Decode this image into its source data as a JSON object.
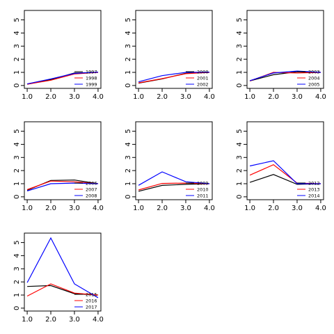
{
  "chart_data": [
    {
      "type": "line",
      "x": [
        1.0,
        2.0,
        3.0,
        4.0
      ],
      "xticks": [
        "1.0",
        "2.0",
        "3.0",
        "4.0"
      ],
      "yticks": [
        "0",
        "1",
        "2",
        "3",
        "4",
        "5"
      ],
      "ylim": [
        0,
        5.5
      ],
      "legend_position": "bottom-right",
      "series": [
        {
          "name": "1997",
          "color": "#000000",
          "values": [
            0.1,
            0.45,
            0.95,
            1.0
          ]
        },
        {
          "name": "1998",
          "color": "#ff0000",
          "values": [
            0.1,
            0.4,
            0.88,
            1.0
          ]
        },
        {
          "name": "1999",
          "color": "#0000ff",
          "values": [
            0.12,
            0.5,
            0.92,
            1.02
          ]
        }
      ]
    },
    {
      "type": "line",
      "x": [
        1.0,
        2.0,
        3.0,
        4.0
      ],
      "xticks": [
        "1.0",
        "2.0",
        "3.0",
        "4.0"
      ],
      "yticks": [
        "0",
        "1",
        "2",
        "3",
        "4",
        "5"
      ],
      "ylim": [
        0,
        5.5
      ],
      "legend_position": "bottom-right",
      "series": [
        {
          "name": "2000",
          "color": "#000000",
          "values": [
            0.18,
            0.5,
            0.93,
            1.0
          ]
        },
        {
          "name": "2001",
          "color": "#ff0000",
          "values": [
            0.2,
            0.52,
            0.9,
            1.0
          ]
        },
        {
          "name": "2002",
          "color": "#0000ff",
          "values": [
            0.28,
            0.75,
            1.0,
            1.02
          ]
        }
      ]
    },
    {
      "type": "line",
      "x": [
        1.0,
        2.0,
        3.0,
        4.0
      ],
      "xticks": [
        "1.0",
        "2.0",
        "3.0",
        "4.0"
      ],
      "yticks": [
        "0",
        "1",
        "2",
        "3",
        "4",
        "5"
      ],
      "ylim": [
        0,
        5.5
      ],
      "legend_position": "bottom-right",
      "series": [
        {
          "name": "2003",
          "color": "#000000",
          "values": [
            0.35,
            0.82,
            1.05,
            1.0
          ]
        },
        {
          "name": "2004",
          "color": "#ff0000",
          "values": [
            0.35,
            1.0,
            0.95,
            1.0
          ]
        },
        {
          "name": "2005",
          "color": "#0000ff",
          "values": [
            0.37,
            0.95,
            1.1,
            1.0
          ]
        }
      ]
    },
    {
      "type": "line",
      "x": [
        1.0,
        2.0,
        3.0,
        4.0
      ],
      "xticks": [
        "1.0",
        "2.0",
        "3.0",
        "4.0"
      ],
      "yticks": [
        "0",
        "1",
        "2",
        "3",
        "4",
        "5"
      ],
      "ylim": [
        0,
        5.5
      ],
      "legend_position": "bottom-right",
      "series": [
        {
          "name": "2006",
          "color": "#000000",
          "values": [
            0.5,
            1.25,
            1.28,
            1.0
          ]
        },
        {
          "name": "2007",
          "color": "#ff0000",
          "values": [
            0.55,
            1.2,
            1.15,
            1.0
          ]
        },
        {
          "name": "2008",
          "color": "#0000ff",
          "values": [
            0.45,
            1.0,
            1.05,
            1.0
          ]
        }
      ]
    },
    {
      "type": "line",
      "x": [
        1.0,
        2.0,
        3.0,
        4.0
      ],
      "xticks": [
        "1.0",
        "2.0",
        "3.0",
        "4.0"
      ],
      "yticks": [
        "0",
        "1",
        "2",
        "3",
        "4",
        "5"
      ],
      "ylim": [
        0,
        5.5
      ],
      "legend_position": "bottom-right",
      "series": [
        {
          "name": "2009",
          "color": "#000000",
          "values": [
            0.42,
            0.87,
            0.95,
            1.0
          ]
        },
        {
          "name": "2010",
          "color": "#ff0000",
          "values": [
            0.52,
            1.02,
            1.05,
            1.0
          ]
        },
        {
          "name": "2011",
          "color": "#0000ff",
          "values": [
            0.88,
            1.9,
            1.15,
            1.0
          ]
        }
      ]
    },
    {
      "type": "line",
      "x": [
        1.0,
        2.0,
        3.0,
        4.0
      ],
      "xticks": [
        "1.0",
        "2.0",
        "3.0",
        "4.0"
      ],
      "yticks": [
        "0",
        "1",
        "2",
        "3",
        "4",
        "5"
      ],
      "ylim": [
        0,
        5.5
      ],
      "legend_position": "bottom-right",
      "series": [
        {
          "name": "2012",
          "color": "#000000",
          "values": [
            1.1,
            1.7,
            0.95,
            1.0
          ]
        },
        {
          "name": "2013",
          "color": "#ff0000",
          "values": [
            1.65,
            2.45,
            1.05,
            1.0
          ]
        },
        {
          "name": "2014",
          "color": "#0000ff",
          "values": [
            2.35,
            2.75,
            1.0,
            1.0
          ]
        }
      ]
    },
    {
      "type": "line",
      "x": [
        1.0,
        2.0,
        3.0,
        4.0
      ],
      "xticks": [
        "1.0",
        "2.0",
        "3.0",
        "4.0"
      ],
      "yticks": [
        "0",
        "1",
        "2",
        "3",
        "4",
        "5"
      ],
      "ylim": [
        0,
        5.5
      ],
      "legend_position": "bottom-right",
      "series": [
        {
          "name": "2015",
          "color": "#000000",
          "values": [
            1.65,
            1.72,
            1.1,
            1.0
          ]
        },
        {
          "name": "2016",
          "color": "#ff0000",
          "values": [
            0.92,
            1.85,
            1.15,
            1.0
          ]
        },
        {
          "name": "2017",
          "color": "#0000ff",
          "values": [
            1.95,
            5.35,
            1.85,
            0.8
          ]
        }
      ]
    }
  ]
}
